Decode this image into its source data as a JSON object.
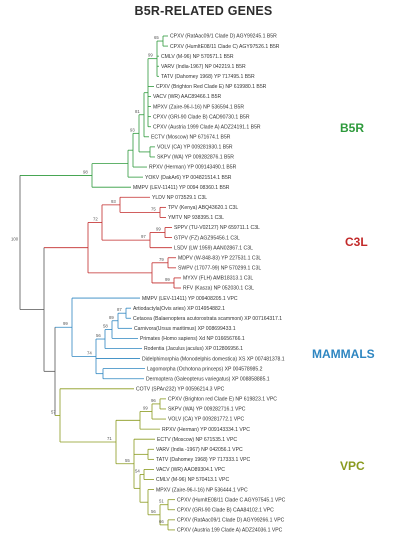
{
  "title": "B5R-RELATED GENES",
  "colors": {
    "root": "#555555",
    "b5r": "#2e9a3c",
    "c3l": "#c22a2a",
    "mammals": "#2e86c1",
    "vpc": "#8a9a1e"
  },
  "clade_labels": {
    "b5r": "B5R",
    "c3l": "C3L",
    "mammals": "MAMMALS",
    "vpc": "VPC"
  },
  "leaves": [
    "CPXV (RatAac09/1 Clade D) AGY99245.1 B5R",
    "CPXV (HumItE08/11 Clade C) AGY97526.1 B5R",
    "CMLV (M-96) NP 570571.1 B5R",
    "VARV (India-1967) NP 042219.1 B5R",
    "TATV (Dahomey 1968) YP 717495.1 B5R",
    "CPXV (Brighton Red Clade E) NP 619980.1 B5R",
    "VACV (WR) AAC89466.1 B5R",
    "MPXV (Zaire-96-I-16) NP 536594.1 B5R",
    "CPXV (GRI-90 Clade B) CAD90730.1 B5R",
    "CPXV (Austria 1999 Clade A) ADZ24191.1 B5R",
    "ECTV (Moscow) NP 671674.1 B5R",
    "VOLV (CA) YP 009281930.1 B5R",
    "SKPV (WA) YP 009282876.1 B5R",
    "RPXV (Herman) YP 009143490.1 B5R",
    "YOKV (DakAr6) YP 004821514.1 B5R",
    "MMPV (LEV-11411) YP 0094 08360.1 B5R",
    "YLDV NP 073529.1  C3L",
    "TPV (Kenya) ABQ43620.1 C3L",
    "YMTV NP 938395.1 C3L",
    "SPPV (TU-V02127) NP 659711.1 C3L",
    "GTPV (FZ) AGZ95456.1 C3L",
    "LSDV (LW 1959) AAN02867.1 C3L",
    "MDPV (W-848-83) YP 227531.1 C3L",
    "SWPV (17077-99) NP 570299.1 C3L",
    "MYXV (FLH) AMB18313.1 C3L",
    "RFV (Kasza) NP 052030.1 C3L",
    "MMPV (LEV-11411) YP 009408205.1 VPC",
    "Artiodactyla(Ovis aries) XP 014954882.1",
    "Cetacea (Balaenoptera acutorostrata scammoni) XP 007164317.1",
    "Carnivora(Ursus maritimus) XP 008699433.1",
    "Primates (Homo sapiens) Xd NP 016656766.1",
    "Rodentia (Jaculus jaculus) XP 012806956.1",
    "Didelphimorphia (Monodelphis domestica) XS XP 007481378.1",
    "Lagomorpha (Ochotona princeps) XP 004578985.2",
    "Dermoptera (Galeopterus variegatus) XP 008858885.1",
    "COTV (SPAn232) YP 00596214.3  VPC",
    "CPXV (Brighton red Clade E) NP 619823.1 VPC",
    "SKPV (WA) YP 009282716.1 VPC",
    "VOLV (CA) YP 009281772.1 VPC",
    "RPXV (Herman) YP 009143334.1 VPC",
    "ECTV (Moscow) NP 671535.1 VPC",
    "VARV (India -1967) NP 042056.1 VPC",
    "TATV (Dahomey 1968) YP 717333.1 VPC",
    "VACV (WR) AAO89304.1 VPC",
    "CMLV (M-96) NP 570413.1 VPC",
    "MPXV (Zaire-96-I-16) NP 536444.1 VPC",
    "CPXV (HumItE08/11 Clade C AGY97545.1 VPC",
    "CPXV (GRI-90 Clade B) CAA84102.1 VPC",
    "CPXV (RatAac09/1 Clade D) AGY99266.1 VPC",
    "CPXV (Austria 199 Clade A) ADZ24036.1 VPC"
  ],
  "bootstrap": {
    "b5r_top": "65",
    "b5r_mid": "99",
    "b5r_a": "93",
    "b5r_b": "81",
    "b5r_root": "98",
    "root": "100",
    "c3l_a": "75",
    "c3l_b": "93",
    "c3l_c": "99",
    "c3l_d": "97",
    "c3l_root": "72",
    "c3l_e": "79",
    "c3l_f": "99",
    "mam_a": "87",
    "mam_b": "89",
    "mam_c": "58",
    "mam_d": "56",
    "mam_e": "74",
    "mam_root": "99",
    "vpc_root": "57",
    "vpc_a": "96",
    "vpc_b": "99",
    "vpc_c": "71",
    "vpc_d": "55",
    "vpc_e": "54",
    "vpc_f": "51",
    "vpc_g": "66",
    "vpc_h": "56"
  }
}
